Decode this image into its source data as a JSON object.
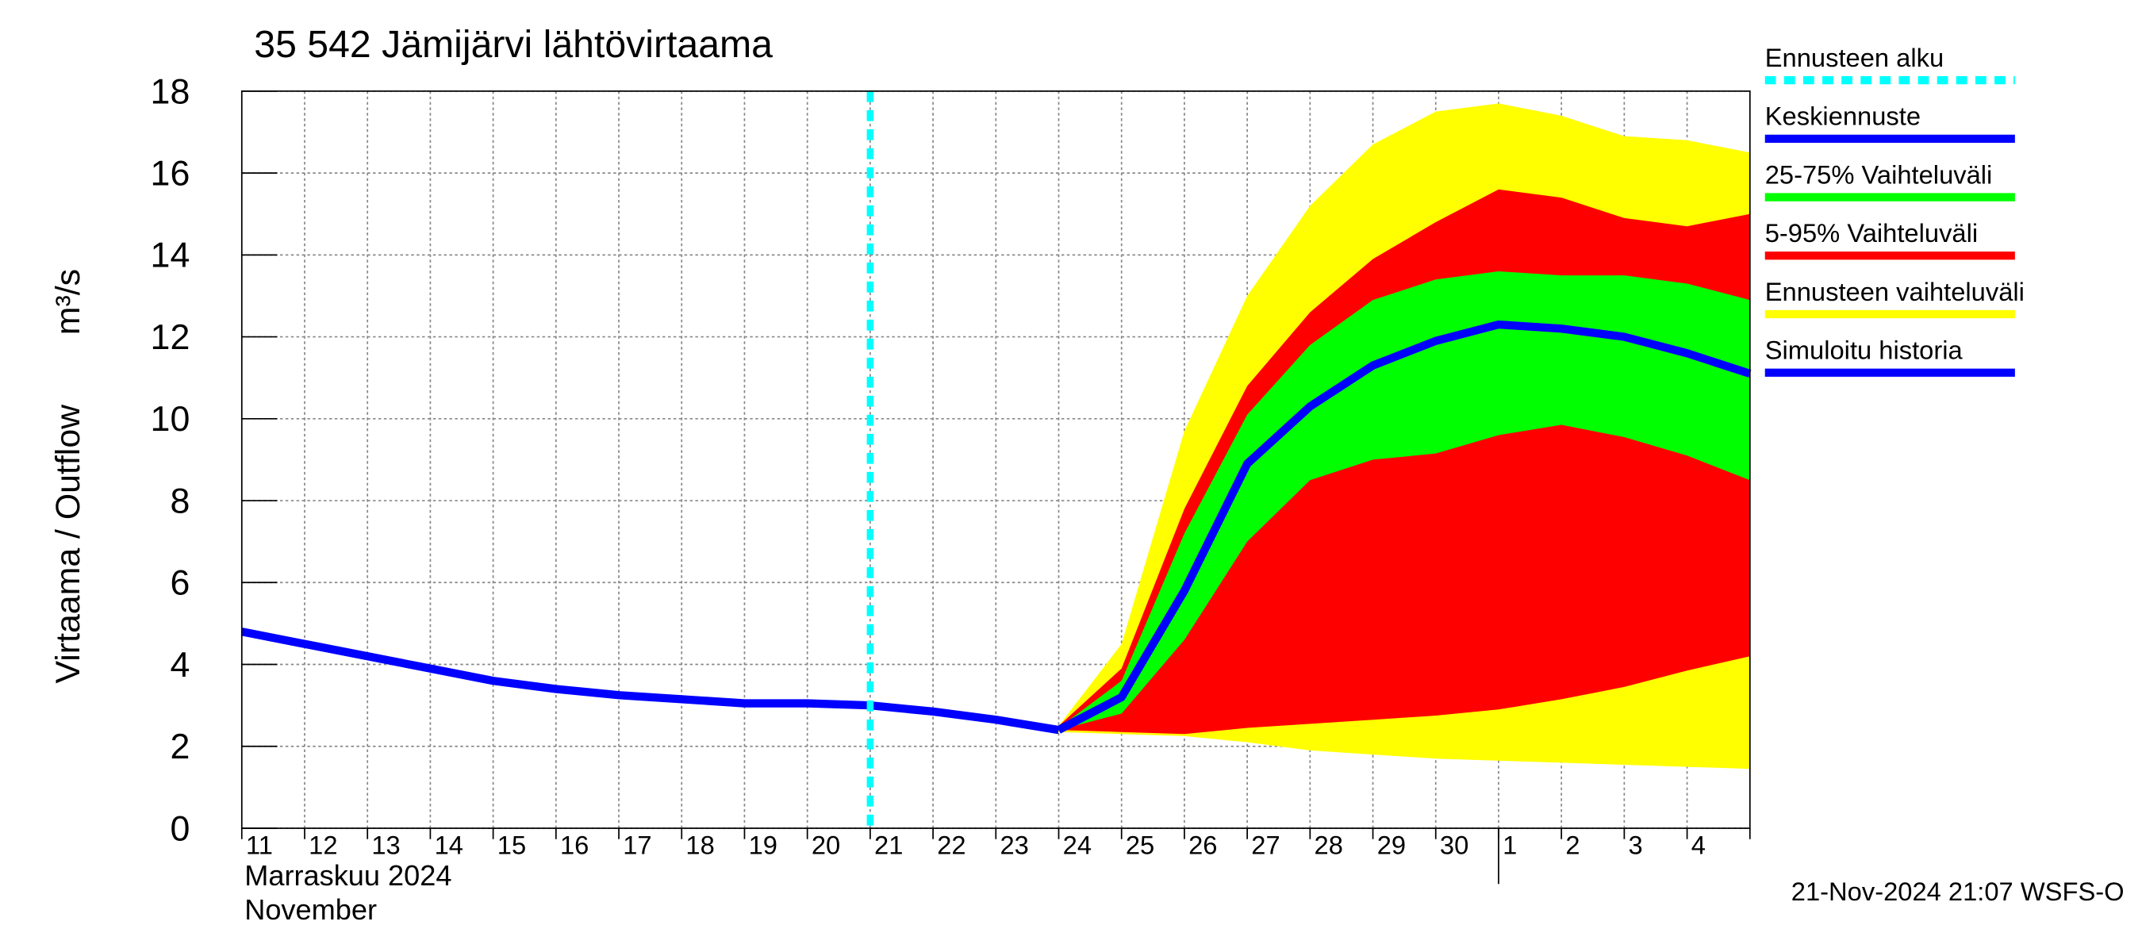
{
  "chart_data": {
    "type": "line",
    "title": "35 542 Jämijärvi lähtövirtaama",
    "y_label": "Virtaama / Outflow",
    "y_unit": "m³/s",
    "x_label_fi": "Marraskuu 2024",
    "x_label_en": "November",
    "timestamp": "21-Nov-2024 21:07 WSFS-O",
    "categories": [
      "11",
      "12",
      "13",
      "14",
      "15",
      "16",
      "17",
      "18",
      "19",
      "20",
      "21",
      "22",
      "23",
      "24",
      "25",
      "26",
      "27",
      "28",
      "29",
      "30",
      "1",
      "2",
      "3",
      "4",
      null
    ],
    "ylim": [
      0,
      18
    ],
    "yticks": [
      0,
      2,
      4,
      6,
      8,
      10,
      12,
      14,
      16,
      18
    ],
    "grid": true,
    "series": [
      {
        "name": "Ennusteen alku",
        "kind": "vline",
        "color": "#00ffff",
        "at": "21"
      },
      {
        "name": "Keskiennuste",
        "kind": "line",
        "color": "#0000ff",
        "values": [
          null,
          null,
          null,
          null,
          null,
          null,
          null,
          null,
          null,
          null,
          null,
          null,
          null,
          2.4,
          3.2,
          5.8,
          8.9,
          10.3,
          11.3,
          11.9,
          12.3,
          12.2,
          12.0,
          11.6,
          11.1
        ]
      },
      {
        "name": "25-75% Vaihteluväli",
        "kind": "band",
        "color": "#00ff00",
        "low": [
          null,
          null,
          null,
          null,
          null,
          null,
          null,
          null,
          null,
          null,
          null,
          null,
          null,
          2.4,
          2.8,
          4.6,
          7.0,
          8.5,
          9.0,
          9.15,
          9.6,
          9.85,
          9.55,
          9.1,
          8.5
        ],
        "high": [
          null,
          null,
          null,
          null,
          null,
          null,
          null,
          null,
          null,
          null,
          null,
          null,
          null,
          2.45,
          3.6,
          7.2,
          10.1,
          11.8,
          12.9,
          13.4,
          13.6,
          13.5,
          13.5,
          13.3,
          12.9
        ]
      },
      {
        "name": "5-95% Vaihteluväli",
        "kind": "band",
        "color": "#ff0000",
        "low": [
          null,
          null,
          null,
          null,
          null,
          null,
          null,
          null,
          null,
          null,
          null,
          null,
          null,
          2.4,
          2.35,
          2.3,
          2.45,
          2.55,
          2.65,
          2.75,
          2.9,
          3.15,
          3.45,
          3.85,
          4.2
        ],
        "high": [
          null,
          null,
          null,
          null,
          null,
          null,
          null,
          null,
          null,
          null,
          null,
          null,
          null,
          2.5,
          3.9,
          7.8,
          10.8,
          12.6,
          13.9,
          14.8,
          15.6,
          15.4,
          14.9,
          14.7,
          15.0
        ]
      },
      {
        "name": "Ennusteen vaihteluväli",
        "kind": "band",
        "color": "#ffff00",
        "low": [
          null,
          null,
          null,
          null,
          null,
          null,
          null,
          null,
          null,
          null,
          3.0,
          2.85,
          2.6,
          2.35,
          2.3,
          2.25,
          2.1,
          1.9,
          1.8,
          1.7,
          1.65,
          1.6,
          1.55,
          1.5,
          1.45
        ],
        "high": [
          null,
          null,
          null,
          null,
          null,
          null,
          null,
          null,
          null,
          null,
          3.05,
          2.95,
          2.75,
          2.5,
          4.5,
          9.7,
          13.0,
          15.2,
          16.7,
          17.5,
          17.7,
          17.4,
          16.9,
          16.8,
          16.5
        ]
      },
      {
        "name": "Simuloitu historia",
        "kind": "line",
        "color": "#0000ff",
        "values": [
          4.8,
          4.5,
          4.2,
          3.9,
          3.6,
          3.4,
          3.25,
          3.15,
          3.05,
          3.05,
          3.0,
          2.85,
          2.65,
          2.4,
          null,
          null,
          null,
          null,
          null,
          null,
          null,
          null,
          null,
          null,
          null
        ]
      }
    ]
  }
}
